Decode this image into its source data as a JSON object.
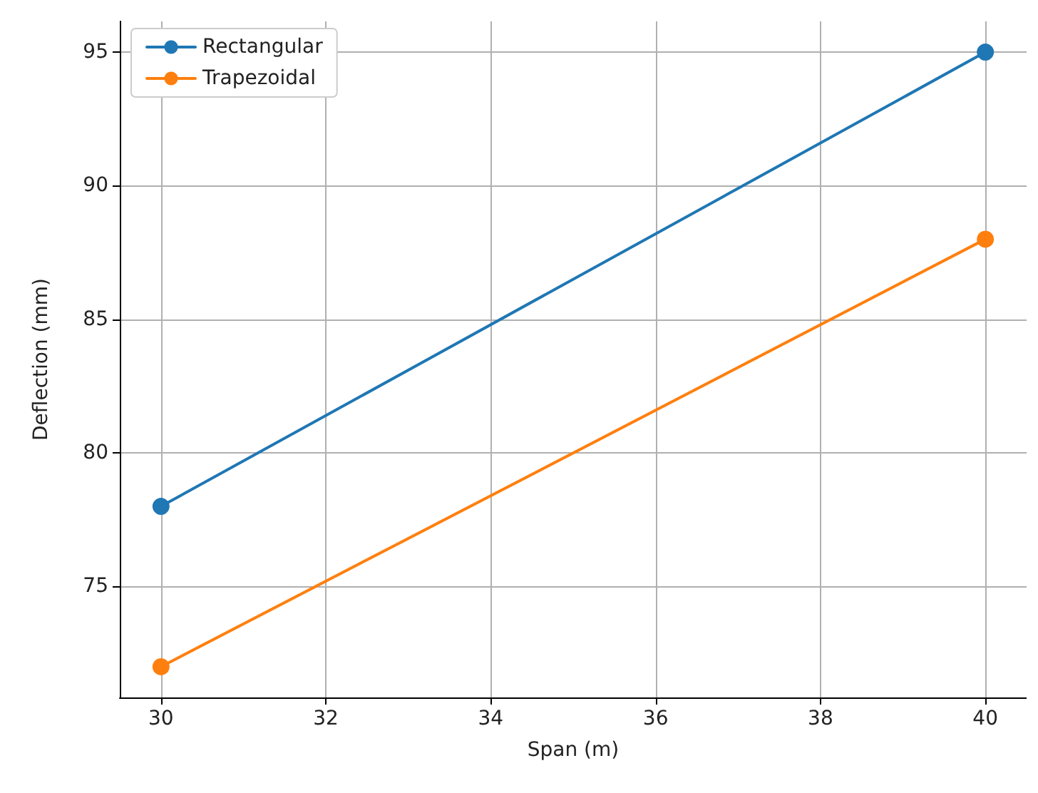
{
  "chart_data": {
    "type": "line",
    "xlabel": "Span (m)",
    "ylabel": "Deflection (mm)",
    "x": [
      30,
      40
    ],
    "series": [
      {
        "name": "Rectangular",
        "color": "#1f77b4",
        "values": [
          78,
          95
        ]
      },
      {
        "name": "Trapezoidal",
        "color": "#ff7f0e",
        "values": [
          72,
          88
        ]
      }
    ],
    "xlim": [
      29.5,
      40.5
    ],
    "xticks": [
      30,
      32,
      34,
      36,
      38,
      40
    ],
    "ylim": [
      70.85,
      96.15
    ],
    "yticks": [
      75,
      80,
      85,
      90,
      95
    ],
    "grid": true,
    "legend": "top left",
    "marker": "circle",
    "line_style": "solid"
  }
}
